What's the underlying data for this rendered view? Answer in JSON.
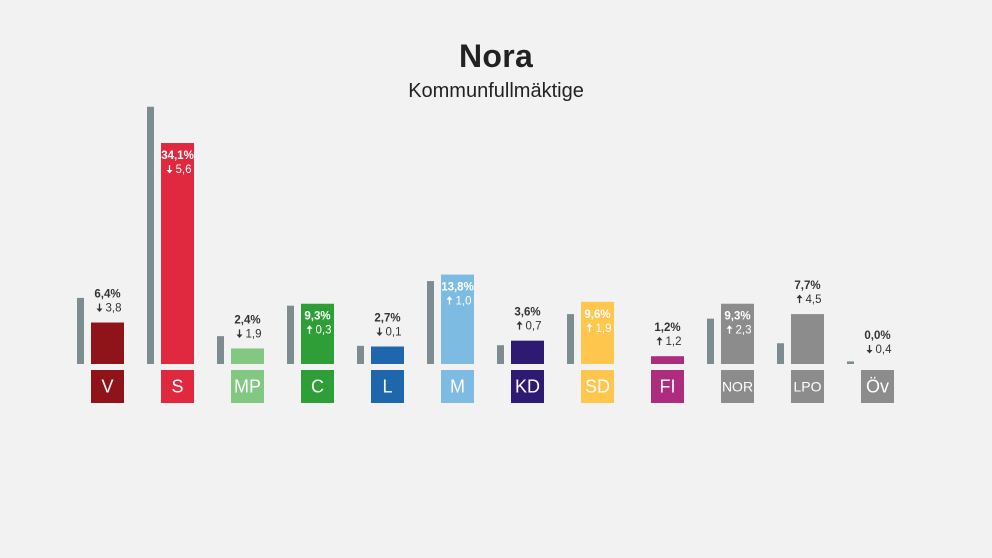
{
  "title": "Nora",
  "subtitle": "Kommunfullmäktige",
  "chart_data": {
    "type": "bar",
    "title": "Nora",
    "subtitle": "Kommunfullmäktige",
    "categories": [
      "V",
      "S",
      "MP",
      "C",
      "L",
      "M",
      "KD",
      "SD",
      "FI",
      "NOR",
      "LPO",
      "Öv"
    ],
    "series": [
      {
        "values": [
          10.2,
          39.7,
          4.3,
          9.0,
          2.8,
          12.8,
          2.9,
          7.7,
          0,
          7.0,
          3.2,
          0.4
        ]
      },
      {
        "values": [
          6.4,
          34.1,
          2.4,
          9.3,
          2.7,
          13.8,
          3.6,
          9.6,
          1.2,
          9.3,
          7.7,
          0.0
        ]
      }
    ],
    "value_labels": [
      "6,4%",
      "34,1%",
      "2,4%",
      "9,3%",
      "2,7%",
      "13,8%",
      "3,6%",
      "9,6%",
      "1,2%",
      "9,3%",
      "7,7%",
      "0,0%"
    ],
    "change_labels": [
      "3,8",
      "5,6",
      "1,9",
      "0,3",
      "0,1",
      "1,0",
      "0,7",
      "1,9",
      "1,2",
      "2,3",
      "4,5",
      "0,4"
    ],
    "change_direction": [
      "down",
      "down",
      "down",
      "up",
      "down",
      "up",
      "up",
      "up",
      "up",
      "up",
      "up",
      "down"
    ],
    "label_inside": [
      false,
      true,
      false,
      true,
      false,
      true,
      false,
      true,
      false,
      true,
      false,
      false
    ],
    "colors": [
      "#8f1419",
      "#e0293f",
      "#83c882",
      "#2d9f36",
      "#1f67ad",
      "#7dbbe2",
      "#2d1a73",
      "#fec64c",
      "#ae2c7d",
      "#8c8c8c",
      "#8c8c8c",
      "#8c8c8c"
    ],
    "previous_color": "#7d8c91",
    "ylim": [
      0,
      40
    ]
  }
}
